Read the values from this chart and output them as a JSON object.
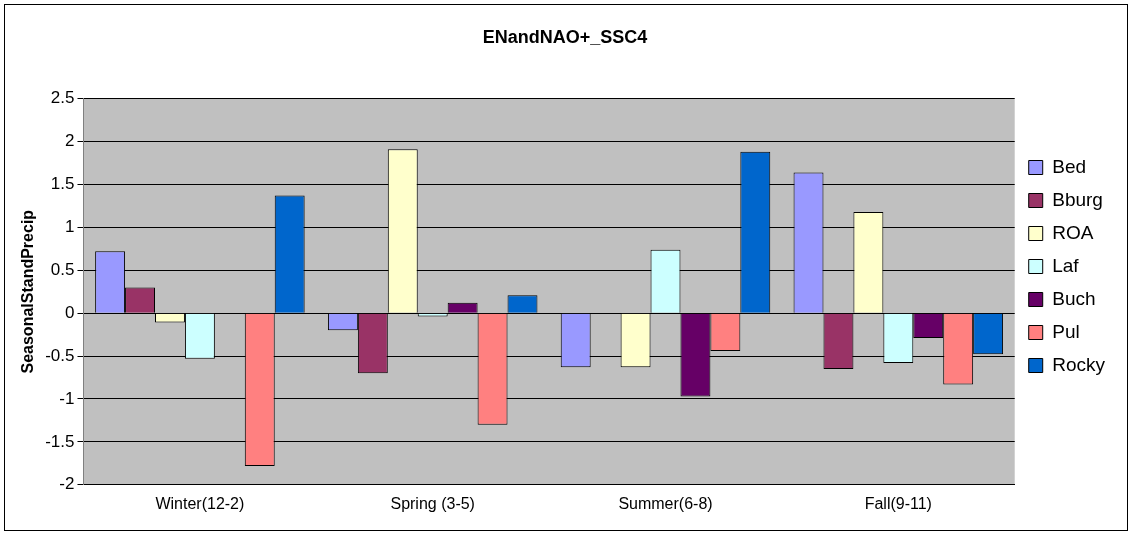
{
  "chart_data": {
    "type": "bar",
    "title": "ENandNAO+_SSC4",
    "ylabel": "SeasonalStandPrecip",
    "categories": [
      "Winter(12-2)",
      "Spring (3-5)",
      "Summer(6-8)",
      "Fall(9-11)"
    ],
    "series": [
      {
        "name": "Bed",
        "color": "#9999ff",
        "values": [
          0.72,
          -0.2,
          -0.63,
          1.64
        ]
      },
      {
        "name": "Bburg",
        "color": "#993366",
        "values": [
          0.3,
          -0.7,
          0,
          -0.65
        ]
      },
      {
        "name": "ROA",
        "color": "#ffffcc",
        "values": [
          -0.11,
          1.91,
          -0.63,
          1.18
        ]
      },
      {
        "name": "Laf",
        "color": "#ccffff",
        "values": [
          -0.53,
          -0.04,
          0.74,
          -0.58
        ]
      },
      {
        "name": "Buch",
        "color": "#660066",
        "values": [
          0,
          0.12,
          -0.97,
          -0.29
        ]
      },
      {
        "name": "Pul",
        "color": "#ff8080",
        "values": [
          -1.78,
          -1.3,
          -0.44,
          -0.83
        ]
      },
      {
        "name": "Rocky",
        "color": "#0066cc",
        "values": [
          1.37,
          0.21,
          1.88,
          -0.48
        ]
      }
    ],
    "ylim": [
      -2,
      2.5
    ],
    "yticks": [
      -2,
      -1.5,
      -1,
      -0.5,
      0,
      0.5,
      1,
      1.5,
      2,
      2.5
    ],
    "grid": "y",
    "legend": "right"
  }
}
